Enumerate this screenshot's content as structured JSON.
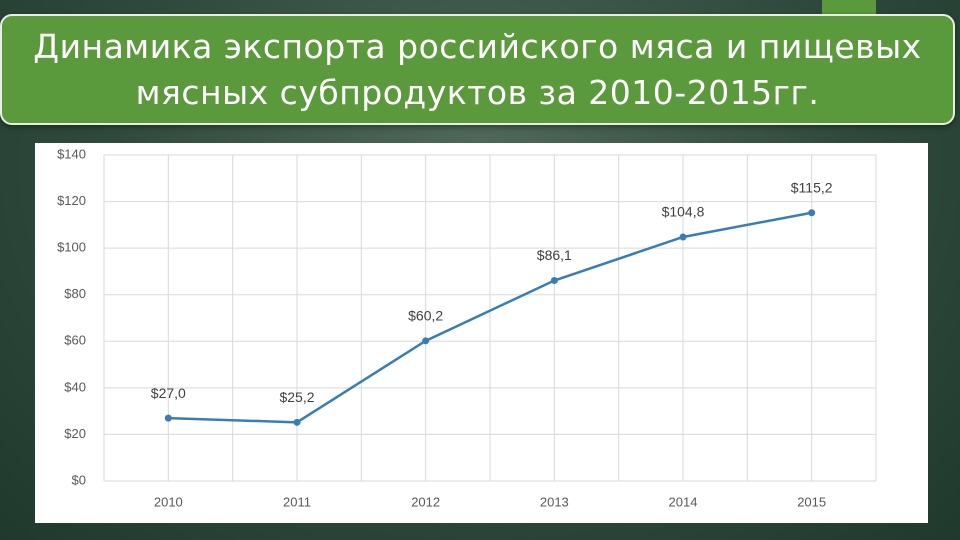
{
  "chart_data": {
    "type": "line",
    "title": "Динамика экспорта российского мяса и пищевых мясных субпродуктов за 2010-2015гг.",
    "categories": [
      "2010",
      "2011",
      "2012",
      "2013",
      "2014",
      "2015"
    ],
    "values": [
      27.0,
      25.2,
      60.2,
      86.1,
      104.8,
      115.2
    ],
    "value_labels": [
      "$27,0",
      "$25,2",
      "$60,2",
      "$86,1",
      "$104,8",
      "$115,2"
    ],
    "color": "#3a7db5",
    "ylim": [
      0,
      140
    ],
    "yticks": [
      {
        "value": 0,
        "label": "$0"
      },
      {
        "value": 20,
        "label": "$20"
      },
      {
        "value": 40,
        "label": "$40"
      },
      {
        "value": 60,
        "label": "$60"
      },
      {
        "value": 80,
        "label": "$80"
      },
      {
        "value": 100,
        "label": "$100"
      },
      {
        "value": 120,
        "label": "$120"
      },
      {
        "value": 140,
        "label": "$140"
      }
    ],
    "grid": true
  }
}
